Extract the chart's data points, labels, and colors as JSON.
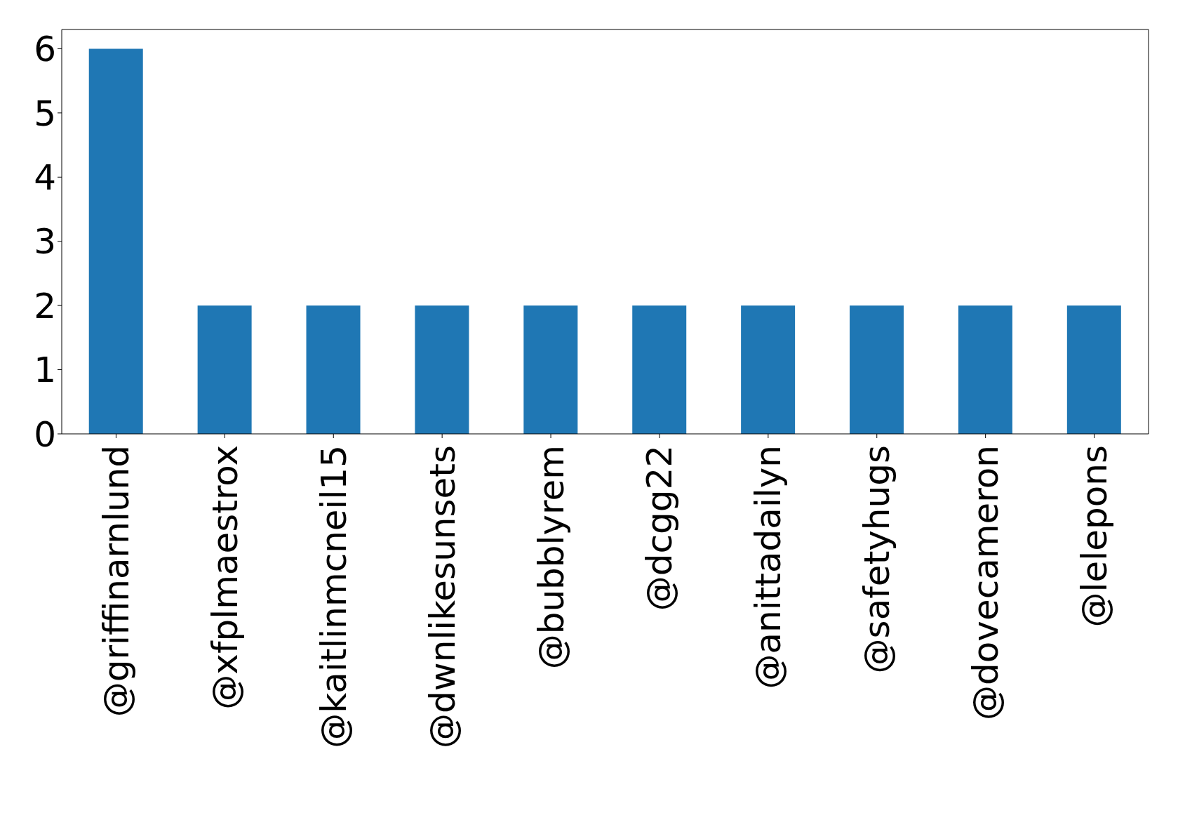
{
  "chart_data": {
    "type": "bar",
    "categories": [
      "@griffinarnlund",
      "@xfplmaestrox",
      "@kaitlinmcneil15",
      "@dwnlikesunsets",
      "@bubblyrem",
      "@dcgg22",
      "@anittadailyn",
      "@safetyhugs",
      "@dovecameron",
      "@lelepons"
    ],
    "values": [
      6,
      2,
      2,
      2,
      2,
      2,
      2,
      2,
      2,
      2
    ],
    "color": "#1f77b4",
    "ylim": [
      0,
      6.3
    ],
    "yticks": [
      0,
      1,
      2,
      3,
      4,
      5,
      6
    ],
    "grid": false,
    "legend": false
  }
}
